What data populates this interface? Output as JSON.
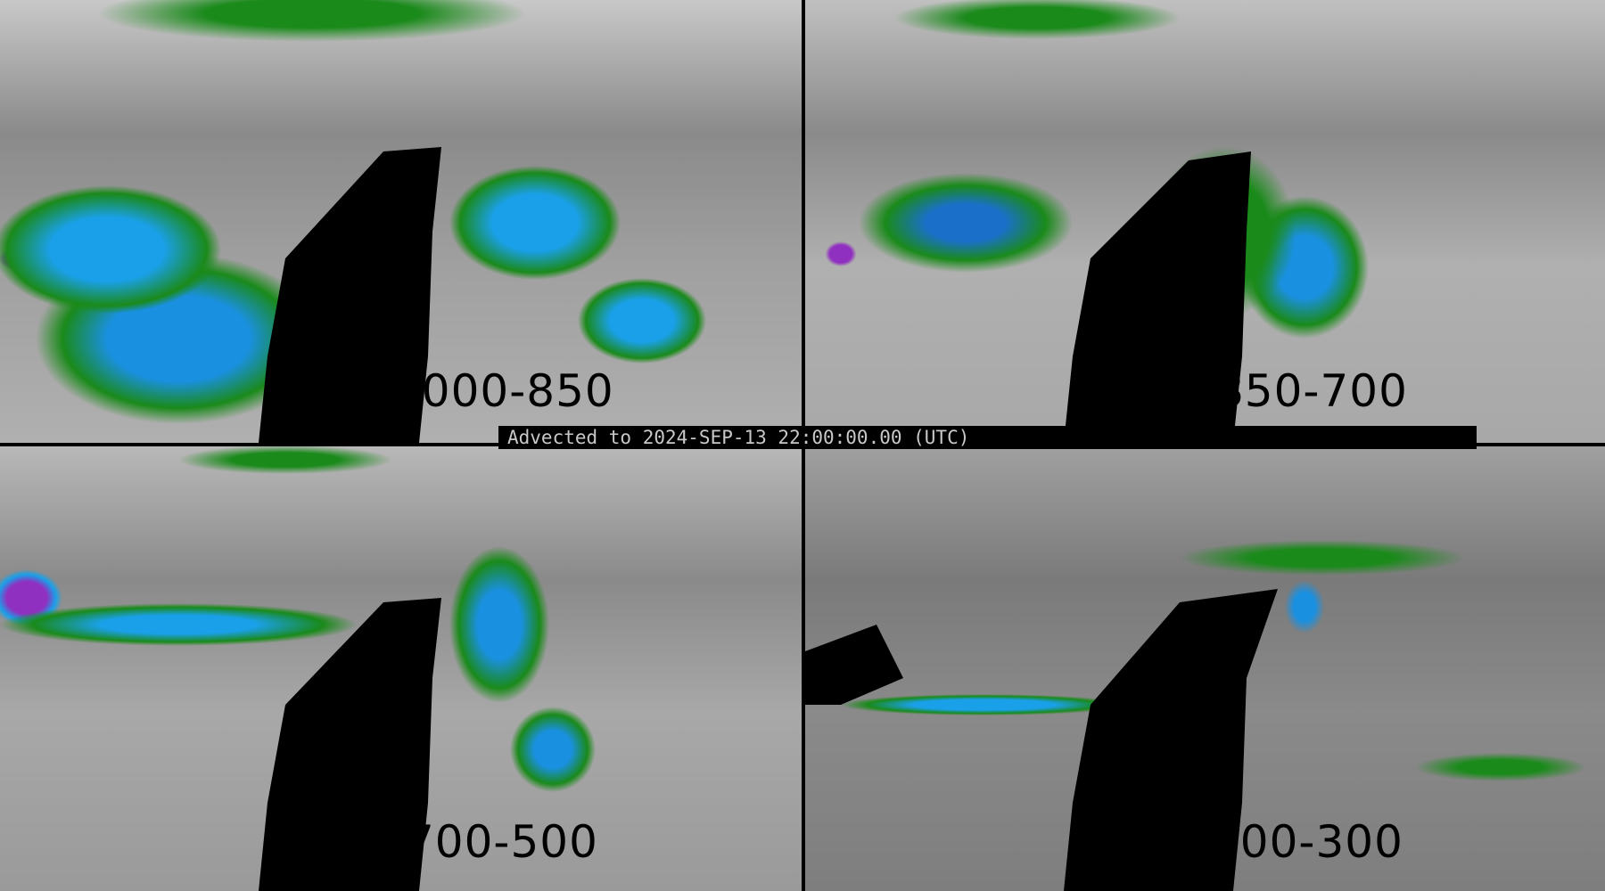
{
  "banner": {
    "text": "Advected to 2024-SEP-13 22:00:00.00 (UTC)"
  },
  "panels": [
    {
      "label": "1000-850"
    },
    {
      "label": "850-700"
    },
    {
      "label": "700-500"
    },
    {
      "label": "500-300"
    }
  ],
  "colors": {
    "background": "#000000",
    "moisture_low": "#1a8a1a",
    "moisture_mid": "#1aa0e8",
    "moisture_high": "#9030c0",
    "no_data": "#000000"
  }
}
